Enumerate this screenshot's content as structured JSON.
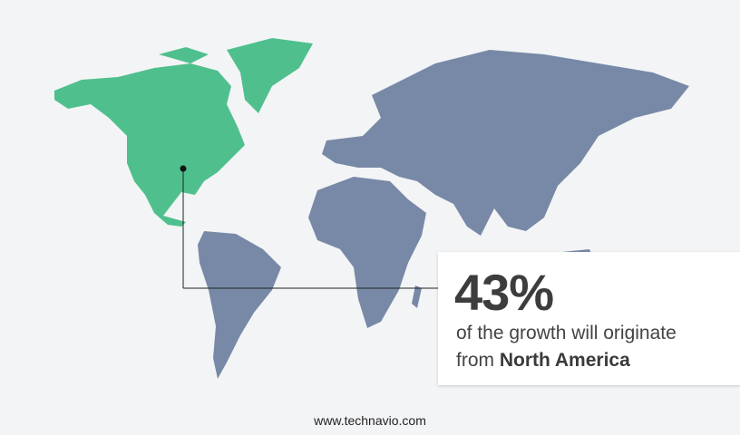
{
  "highlight": {
    "percent": "43%",
    "line1": "of the growth will originate",
    "line2_prefix": "from",
    "region": "North America"
  },
  "colors": {
    "highlight_region": "#4fc08d",
    "other_regions": "#7789a6",
    "background": "#f3f4f6"
  },
  "footer": {
    "website": "www.technavio.com"
  }
}
